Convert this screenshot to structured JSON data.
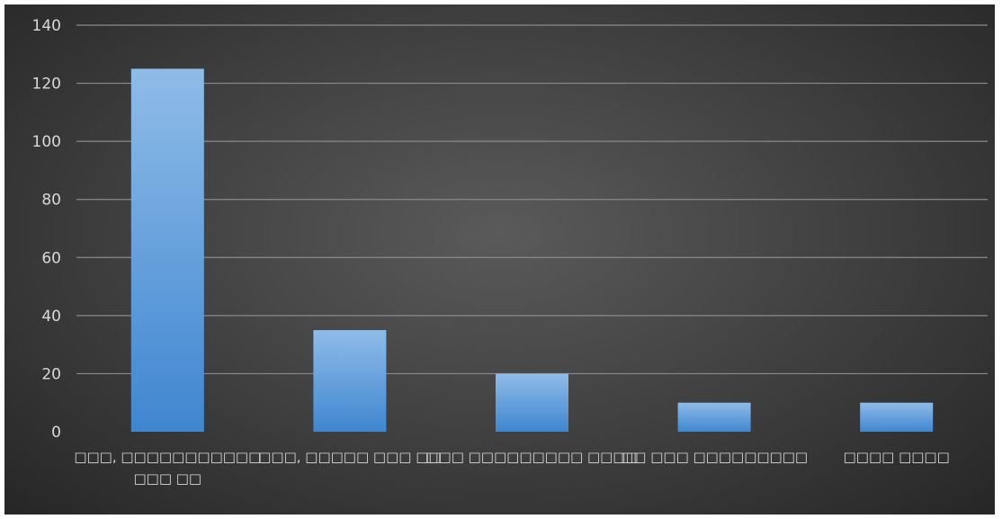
{
  "chart_data": {
    "type": "bar",
    "categories": [
      [
        "□□□, □□□□□□□□□□□",
        "□□□ □□"
      ],
      [
        "□□□, □□□□□ □□□ □□"
      ],
      [
        "□□□ □□□□□□□□□ □□□□"
      ],
      [
        "□□ □□□ □□□□□□□□□"
      ],
      [
        "□□□□ □□□□"
      ]
    ],
    "values": [
      125,
      35,
      20,
      10,
      10
    ],
    "ylim": [
      0,
      140
    ],
    "yticks": [
      0,
      20,
      40,
      60,
      80,
      100,
      120,
      140
    ],
    "grid": true,
    "legend": "none",
    "colors": {
      "bar_top": "#8fbce8",
      "bar_bottom": "#3f86d0",
      "grid": "#8a8a8a",
      "text": "#d9d9d9"
    }
  }
}
